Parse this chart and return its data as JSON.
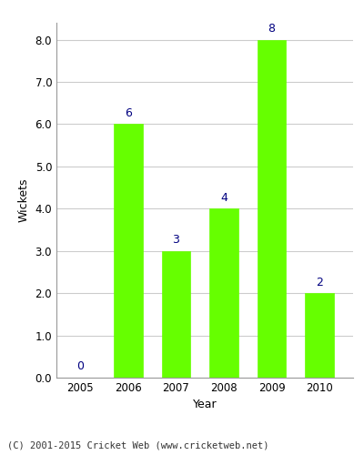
{
  "years": [
    2005,
    2006,
    2007,
    2008,
    2009,
    2010
  ],
  "wickets": [
    0,
    6,
    3,
    4,
    8,
    2
  ],
  "bar_color": "#66ff00",
  "bar_edge_color": "#66ff00",
  "label_color": "#000080",
  "xlabel": "Year",
  "ylabel": "Wickets",
  "ylim": [
    0,
    8.4
  ],
  "yticks": [
    0.0,
    1.0,
    2.0,
    3.0,
    4.0,
    5.0,
    6.0,
    7.0,
    8.0
  ],
  "grid_color": "#cccccc",
  "background_color": "#ffffff",
  "footer_text": "(C) 2001-2015 Cricket Web (www.cricketweb.net)",
  "label_fontsize": 9,
  "axis_label_fontsize": 9,
  "tick_fontsize": 8.5,
  "bar_width": 0.6
}
